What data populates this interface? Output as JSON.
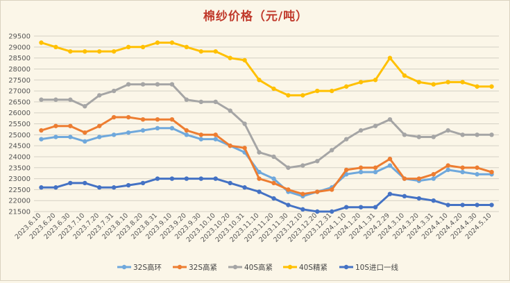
{
  "chart_data": {
    "type": "line",
    "title": "棉纱价格（元/吨）",
    "xlabel": "",
    "ylabel": "",
    "ylim": [
      21500,
      29500
    ],
    "yticks": [
      21500,
      22000,
      22500,
      23000,
      23500,
      24000,
      24500,
      25000,
      25500,
      26000,
      26500,
      27000,
      27500,
      28000,
      28500,
      29000,
      29500
    ],
    "grid": true,
    "legend_position": "bottom",
    "categories": [
      "2023.6.10",
      "2023.6.20",
      "2023.6.30",
      "2023.7.10",
      "2023.7.20",
      "2023.7.31",
      "2023.8.10",
      "2023.8.20",
      "2023.8.31",
      "2023.9.10",
      "2023.9.20",
      "2023.9.30",
      "2023.10.10",
      "2023.10.20",
      "2023.10.31",
      "2023.11.10",
      "2023.11.20",
      "2023.11.30",
      "2023.12.10",
      "2023.12.20",
      "2023.12.31",
      "2024.1.10",
      "2024.1.20",
      "2024.1.31",
      "2024.2.29",
      "2024.3.10",
      "2024.3.20",
      "2024.3.31",
      "2024.4.10",
      "2024.4.20",
      "2024.4.30",
      "2024.5.10"
    ],
    "series": [
      {
        "name": "32S高环",
        "color": "#6fa8dc",
        "values": [
          24800,
          24900,
          24900,
          24700,
          24900,
          25000,
          25100,
          25200,
          25300,
          25300,
          25000,
          24800,
          24800,
          24500,
          24200,
          23300,
          23000,
          22400,
          22200,
          22400,
          22600,
          23200,
          23300,
          23300,
          23600,
          23000,
          22900,
          23000,
          23400,
          23300,
          23200,
          23200
        ]
      },
      {
        "name": "32S高紧",
        "color": "#ed7d31",
        "values": [
          25200,
          25400,
          25400,
          25100,
          25400,
          25800,
          25800,
          25700,
          25700,
          25700,
          25200,
          25000,
          25000,
          24500,
          24400,
          23000,
          22800,
          22500,
          22300,
          22400,
          22500,
          23400,
          23500,
          23500,
          23900,
          23000,
          23000,
          23200,
          23600,
          23500,
          23500,
          23300
        ]
      },
      {
        "name": "40S高紧",
        "color": "#a5a5a5",
        "values": [
          26600,
          26600,
          26600,
          26300,
          26800,
          27000,
          27300,
          27300,
          27300,
          27300,
          26600,
          26500,
          26500,
          26100,
          25500,
          24200,
          24000,
          23500,
          23600,
          23800,
          24300,
          24800,
          25200,
          25400,
          25700,
          25000,
          24900,
          24900,
          25200,
          25000,
          25000,
          25000
        ]
      },
      {
        "name": "40S精紧",
        "color": "#ffc000",
        "values": [
          29200,
          29000,
          28800,
          28800,
          28800,
          28800,
          29000,
          29000,
          29200,
          29200,
          29000,
          28800,
          28800,
          28500,
          28400,
          27500,
          27100,
          26800,
          26800,
          27000,
          27000,
          27200,
          27400,
          27500,
          28500,
          27700,
          27400,
          27300,
          27400,
          27400,
          27200,
          27200
        ]
      },
      {
        "name": "10S进口一线",
        "color": "#4472c4",
        "values": [
          22600,
          22600,
          22800,
          22800,
          22600,
          22600,
          22700,
          22800,
          23000,
          23000,
          23000,
          23000,
          23000,
          22800,
          22600,
          22400,
          22100,
          21800,
          21600,
          21500,
          21500,
          21700,
          21700,
          21700,
          22300,
          22200,
          22100,
          22000,
          21800,
          21800,
          21800,
          21800
        ]
      }
    ]
  }
}
